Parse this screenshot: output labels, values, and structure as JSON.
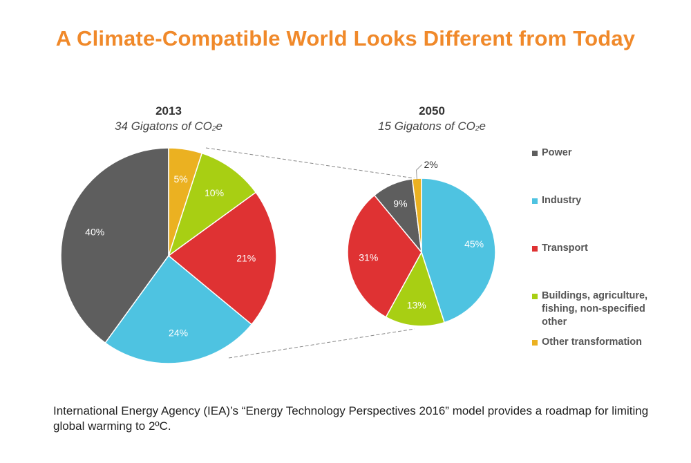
{
  "title": "A Climate-Compatible World Looks Different from Today",
  "caption": "International Energy Agency (IEA)’s “Energy Technology Perspectives 2016” model provides a roadmap for limiting global warming to 2ºC.",
  "legend": [
    {
      "label": "Power",
      "color": "#5E5E5E"
    },
    {
      "label": "Industry",
      "color": "#4EC3E1"
    },
    {
      "label": "Transport",
      "color": "#DF3233"
    },
    {
      "label": "Buildings, agriculture, fishing, non-specified other",
      "color": "#A8CF13"
    },
    {
      "label": "Other transformation",
      "color": "#EBB121"
    }
  ],
  "chart_data": [
    {
      "type": "pie",
      "title": "2013",
      "subtitle_prefix": "34 Gigatons of CO",
      "subtitle_sub": "2",
      "subtitle_suffix": "e",
      "categories": [
        "Power",
        "Industry",
        "Transport",
        "Buildings, agriculture, fishing, non-specified other",
        "Other transformation"
      ],
      "values": [
        40,
        24,
        21,
        10,
        5
      ],
      "labels": [
        "40%",
        "24%",
        "21%",
        "10%",
        "5%"
      ],
      "colors": [
        "#5E5E5E",
        "#4EC3E1",
        "#DF3233",
        "#A8CF13",
        "#EBB121"
      ]
    },
    {
      "type": "pie",
      "title": "2050",
      "subtitle_prefix": "15 Gigatons of CO",
      "subtitle_sub": "2",
      "subtitle_suffix": "e",
      "categories": [
        "Industry",
        "Buildings, agriculture, fishing, non-specified other",
        "Transport",
        "Power",
        "Other transformation"
      ],
      "values": [
        45,
        13,
        31,
        9,
        2
      ],
      "labels": [
        "45%",
        "13%",
        "31%",
        "9%",
        "2%"
      ],
      "colors": [
        "#4EC3E1",
        "#A8CF13",
        "#DF3233",
        "#5E5E5E",
        "#EBB121"
      ]
    }
  ]
}
